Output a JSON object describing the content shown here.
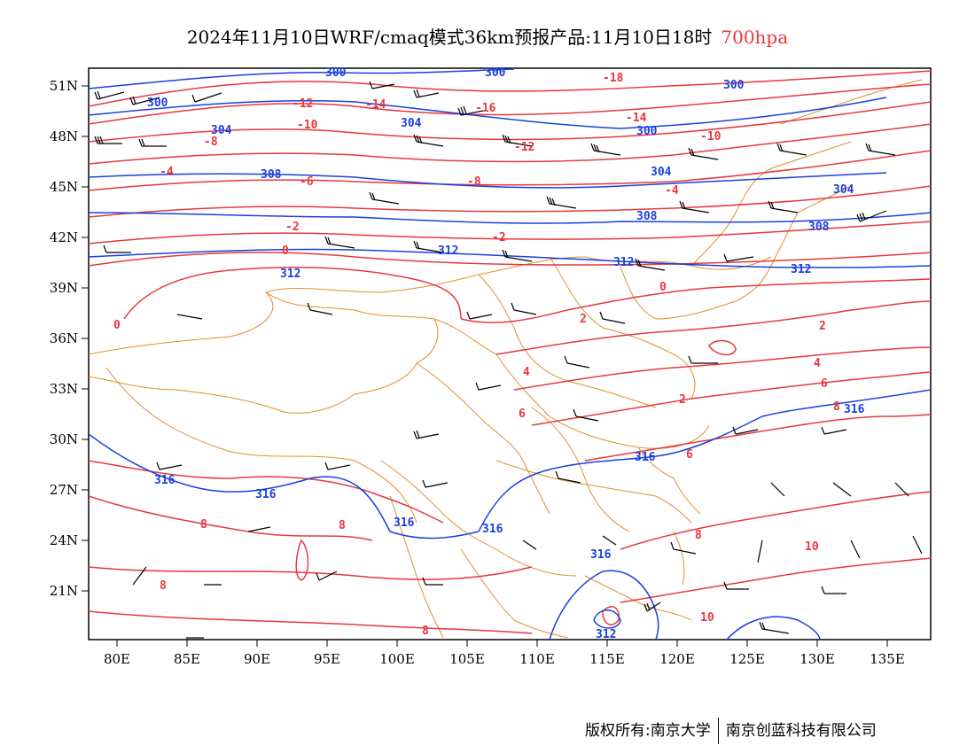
{
  "title": {
    "main": "2024年11月10日WRF/cmaq模式36km预报产品:11月10日18时",
    "level": "700hpa"
  },
  "footer": {
    "copyright": "版权所有:南京大学",
    "company": "南京创蓝科技有限公司"
  },
  "colors": {
    "temperature": "#e8373e",
    "geopotential": "#1a3fe0",
    "boundary": "#e0902f",
    "wind": "#000000"
  },
  "axes": {
    "lon_labels": [
      "80E",
      "85E",
      "90E",
      "95E",
      "100E",
      "105E",
      "110E",
      "115E",
      "120E",
      "125E",
      "130E",
      "135E"
    ],
    "lat_labels": [
      "51N",
      "48N",
      "45N",
      "42N",
      "39N",
      "36N",
      "33N",
      "30N",
      "27N",
      "24N",
      "21N"
    ],
    "lon_range": [
      78,
      138
    ],
    "lat_range": [
      18,
      52
    ]
  },
  "temperature_labels": [
    "-18",
    "-16",
    "-14",
    "-12",
    "-10",
    "-8",
    "-6",
    "-4",
    "-2",
    "0",
    "2",
    "4",
    "6",
    "8",
    "10"
  ],
  "geopotential_labels": [
    "300",
    "304",
    "308",
    "312",
    "316"
  ],
  "map_layers": [
    "temperature-contours",
    "geopotential-height-contours",
    "wind-barbs",
    "province-boundaries"
  ]
}
